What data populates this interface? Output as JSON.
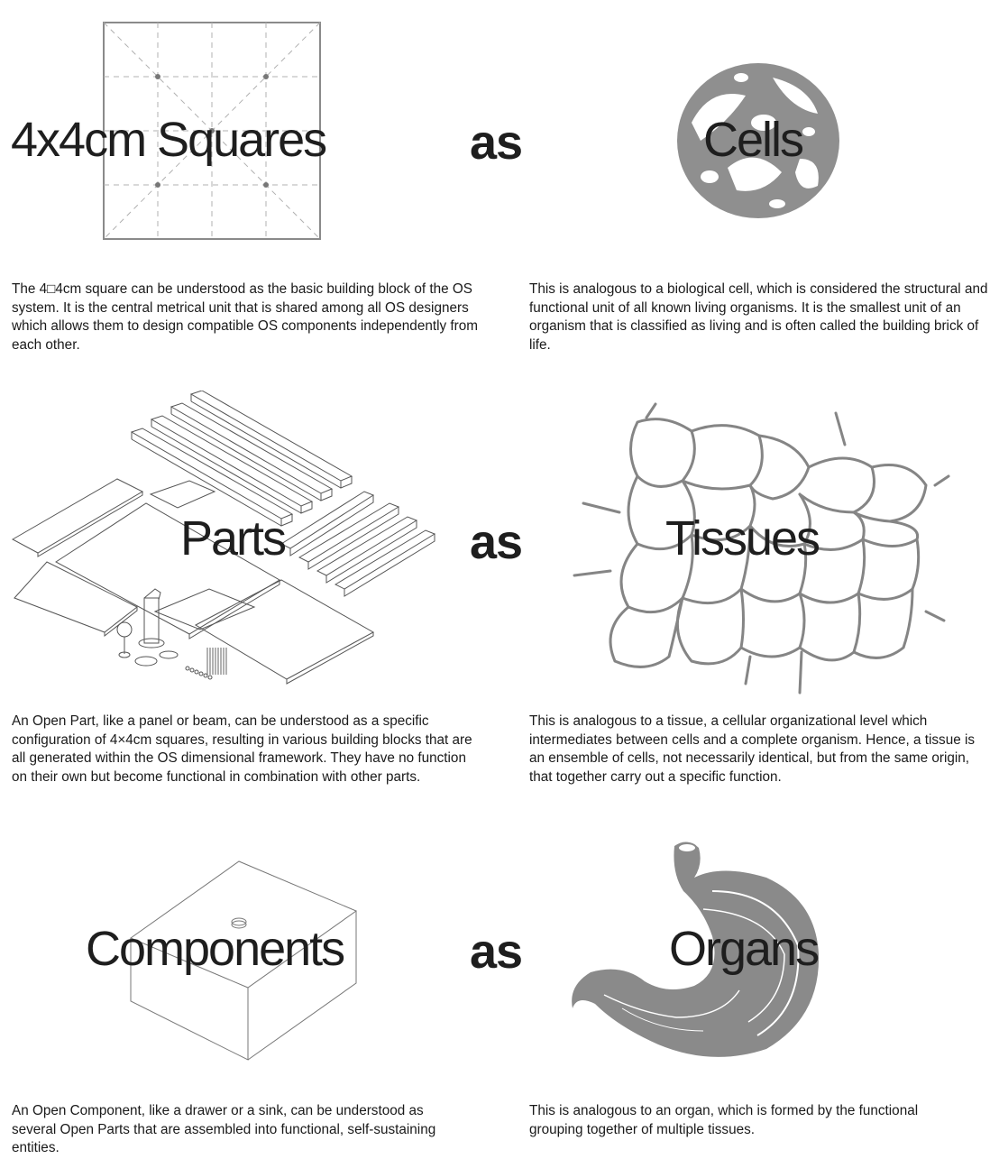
{
  "rows": [
    {
      "left_title": "4x4cm Squares",
      "connector": "as",
      "right_title": "Cells",
      "left_text": "The 4□4cm square can be understood as the basic building block of the OS system. It is the central metrical unit that is shared among all OS designers which allows them to design compatible OS components independently from each other.",
      "right_text": "This is analogous to a biological cell, which is considered the structural and functional unit of all known living organisms. It is the smallest unit of an organism that is classified as living and is often called the building brick of life."
    },
    {
      "left_title": "Parts",
      "connector": "as",
      "right_title": "Tissues",
      "left_text": "An Open Part, like a panel or beam, can be understood as a specific configuration of 4×4cm squares, resulting in various building blocks that are all generated within the OS dimensional framework. They have no function on their own but become functional in combination with other parts.",
      "right_text": "This is analogous to a tissue, a cellular organizational level which intermediates between cells and a complete organism. Hence, a tissue is an ensemble of cells, not necessarily identical, but from the same origin, that together carry out a specific function."
    },
    {
      "left_title": "Components",
      "connector": "as",
      "right_title": "Organs",
      "left_text": "An Open Component, like a drawer or a sink, can be understood as several Open Parts that are assembled into functional, self-sustaining entities.",
      "right_text": "This is analogous to an organ, which is formed by the functional grouping together of multiple tissues."
    }
  ],
  "icons": {
    "square": "grid-square-icon",
    "cell": "biological-cell-icon",
    "parts": "exploded-parts-icon",
    "tissue": "tissue-network-icon",
    "component": "box-component-icon",
    "organ": "stomach-organ-icon"
  },
  "colors": {
    "text": "#1e1e1e",
    "illustration_gray": "#8c8c8c",
    "line_gray": "#9a9a9a"
  }
}
